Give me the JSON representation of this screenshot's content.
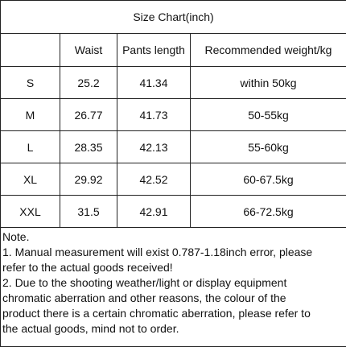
{
  "table": {
    "title": "Size Chart(inch)",
    "header": [
      "",
      "Waist",
      "Pants length",
      "Recommended weight/kg"
    ],
    "rows": [
      [
        "S",
        "25.2",
        "41.34",
        "within 50kg"
      ],
      [
        "M",
        "26.77",
        "41.73",
        "50-55kg"
      ],
      [
        "L",
        "28.35",
        "42.13",
        "55-60kg"
      ],
      [
        "XL",
        "29.92",
        "42.52",
        "60-67.5kg"
      ],
      [
        "XXL",
        "31.5",
        "42.91",
        "66-72.5kg"
      ]
    ]
  },
  "note": {
    "lines": [
      "Note.",
      "1. Manual measurement will exist 0.787-1.18inch error, please",
      "refer to the actual goods received!",
      "2. Due to the shooting weather/light or display equipment",
      "chromatic aberration and other reasons, the colour of the",
      "product there is a certain chromatic aberration, please refer to",
      "the actual goods, mind not to order."
    ]
  }
}
